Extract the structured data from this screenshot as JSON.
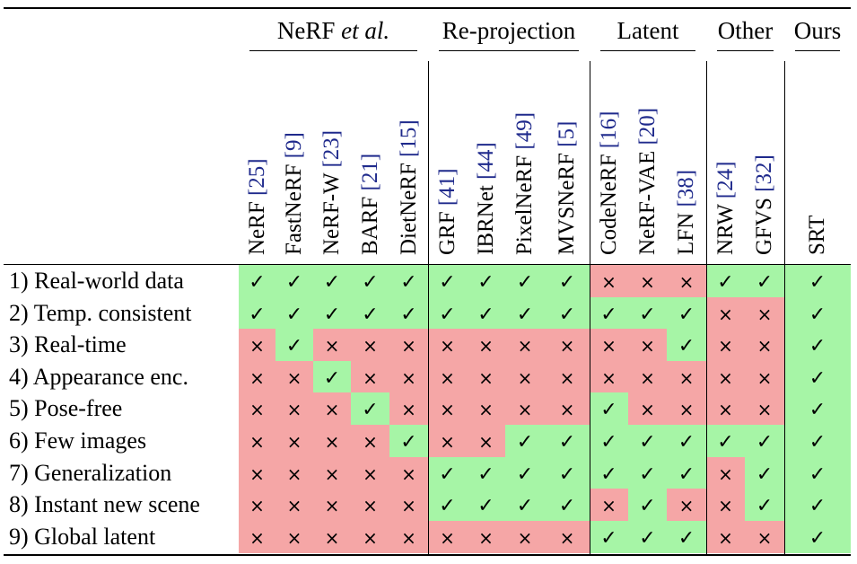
{
  "groups": [
    {
      "label": "NeRF ",
      "label_italic": "et al.",
      "span": 5
    },
    {
      "label": "Re-projection",
      "label_italic": "",
      "span": 4
    },
    {
      "label": "Latent",
      "label_italic": "",
      "span": 3
    },
    {
      "label": "Other",
      "label_italic": "",
      "span": 2
    },
    {
      "label": "Ours",
      "label_italic": "",
      "span": 1
    }
  ],
  "columns": [
    {
      "name": "NeRF",
      "ref": "[25]"
    },
    {
      "name": "FastNeRF",
      "ref": "[9]"
    },
    {
      "name": "NeRF-W",
      "ref": "[23]"
    },
    {
      "name": "BARF",
      "ref": "[21]"
    },
    {
      "name": "DietNeRF",
      "ref": "[15]"
    },
    {
      "name": "GRF",
      "ref": "[41]"
    },
    {
      "name": "IBRNet",
      "ref": "[44]"
    },
    {
      "name": "PixelNeRF",
      "ref": "[49]"
    },
    {
      "name": "MVSNeRF",
      "ref": "[5]"
    },
    {
      "name": "CodeNeRF",
      "ref": "[16]"
    },
    {
      "name": "NeRF-VAE",
      "ref": "[20]"
    },
    {
      "name": "LFN",
      "ref": "[38]"
    },
    {
      "name": "NRW",
      "ref": "[24]"
    },
    {
      "name": "GFVS",
      "ref": "[32]"
    },
    {
      "name": "SRT",
      "ref": ""
    }
  ],
  "rows": [
    {
      "label": "1) Real-world data",
      "values": [
        1,
        1,
        1,
        1,
        1,
        1,
        1,
        1,
        1,
        0,
        0,
        0,
        1,
        1,
        1
      ]
    },
    {
      "label": "2) Temp. consistent",
      "values": [
        1,
        1,
        1,
        1,
        1,
        1,
        1,
        1,
        1,
        1,
        1,
        1,
        0,
        0,
        1
      ]
    },
    {
      "label": "3) Real-time",
      "values": [
        0,
        1,
        0,
        0,
        0,
        0,
        0,
        0,
        0,
        0,
        0,
        1,
        0,
        0,
        1
      ]
    },
    {
      "label": "4) Appearance enc.",
      "values": [
        0,
        0,
        1,
        0,
        0,
        0,
        0,
        0,
        0,
        0,
        0,
        0,
        0,
        0,
        1
      ]
    },
    {
      "label": "5) Pose-free",
      "values": [
        0,
        0,
        0,
        1,
        0,
        0,
        0,
        0,
        0,
        1,
        0,
        0,
        0,
        0,
        1
      ]
    },
    {
      "label": "6) Few images",
      "values": [
        0,
        0,
        0,
        0,
        1,
        0,
        0,
        1,
        1,
        1,
        1,
        1,
        1,
        1,
        1
      ]
    },
    {
      "label": "7) Generalization",
      "values": [
        0,
        0,
        0,
        0,
        0,
        1,
        1,
        1,
        1,
        1,
        1,
        1,
        0,
        1,
        1
      ]
    },
    {
      "label": "8) Instant new scene",
      "values": [
        0,
        0,
        0,
        0,
        0,
        1,
        1,
        1,
        1,
        0,
        1,
        0,
        0,
        1,
        1
      ]
    },
    {
      "label": "9) Global latent",
      "values": [
        0,
        0,
        0,
        0,
        0,
        0,
        0,
        0,
        0,
        1,
        1,
        1,
        0,
        0,
        1
      ]
    }
  ],
  "marks": {
    "yes": "✓",
    "no": "×"
  },
  "colors": {
    "yes": "#a6f5a6",
    "no": "#f5a6a6",
    "ref": "#1f2a8c"
  }
}
